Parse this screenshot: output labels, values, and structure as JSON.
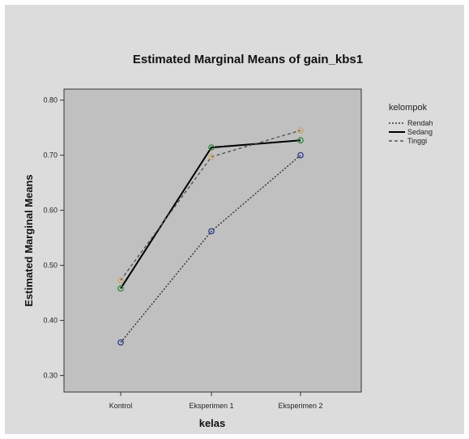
{
  "chart_data": {
    "type": "line",
    "title": "Estimated Marginal Means of gain_kbs1",
    "xlabel": "kelas",
    "ylabel": "Estimated Marginal Means",
    "categories": [
      "Kontrol",
      "Eksperimen 1",
      "Eksperimen 2"
    ],
    "ylim": [
      0.27,
      0.82
    ],
    "yticks": [
      0.3,
      0.4,
      0.5,
      0.6,
      0.7,
      0.8
    ],
    "ytick_labels": [
      "0.30",
      "0.40",
      "0.50",
      "0.60",
      "0.70",
      "0.80"
    ],
    "legend": {
      "title": "kelompok",
      "placement": "right"
    },
    "series": [
      {
        "name": "Rendah",
        "values": [
          0.36,
          0.562,
          0.7
        ],
        "line_style": "dotted",
        "color": "#333333",
        "marker_color": "#2c3a8c"
      },
      {
        "name": "Sedang",
        "values": [
          0.458,
          0.714,
          0.727
        ],
        "line_style": "solid",
        "color": "#000000",
        "marker_color": "#2e8b3a"
      },
      {
        "name": "Tinggi",
        "values": [
          0.473,
          0.697,
          0.745
        ],
        "line_style": "dashed",
        "color": "#555555",
        "marker_color": "#c8a86a"
      }
    ],
    "plot_background": "#c0c0c0",
    "grid": false
  }
}
